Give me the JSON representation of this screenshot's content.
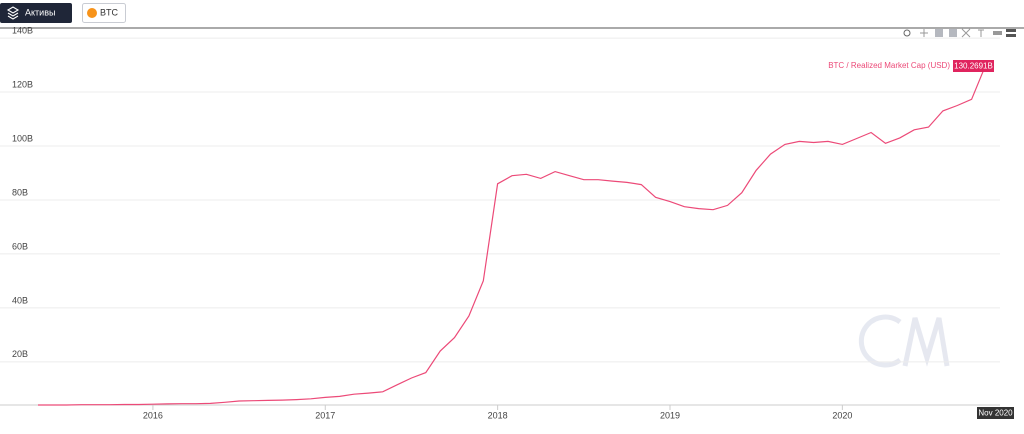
{
  "ui": {
    "assets_button": "Активы",
    "asset_chip": "BTC"
  },
  "chart_data": {
    "type": "line",
    "x": [
      "2015-05",
      "2015-06",
      "2015-07",
      "2015-08",
      "2015-09",
      "2015-10",
      "2015-11",
      "2015-12",
      "2016-01",
      "2016-02",
      "2016-03",
      "2016-04",
      "2016-05",
      "2016-06",
      "2016-07",
      "2016-08",
      "2016-09",
      "2016-10",
      "2016-11",
      "2016-12",
      "2017-01",
      "2017-02",
      "2017-03",
      "2017-04",
      "2017-05",
      "2017-06",
      "2017-07",
      "2017-08",
      "2017-09",
      "2017-10",
      "2017-11",
      "2017-12",
      "2018-01",
      "2018-02",
      "2018-03",
      "2018-04",
      "2018-05",
      "2018-06",
      "2018-07",
      "2018-08",
      "2018-09",
      "2018-10",
      "2018-11",
      "2018-12",
      "2019-01",
      "2019-02",
      "2019-03",
      "2019-04",
      "2019-05",
      "2019-06",
      "2019-07",
      "2019-08",
      "2019-09",
      "2019-10",
      "2019-11",
      "2019-12",
      "2020-01",
      "2020-02",
      "2020-03",
      "2020-04",
      "2020-05",
      "2020-06",
      "2020-07",
      "2020-08",
      "2020-09",
      "2020-10",
      "2020-11"
    ],
    "series": [
      {
        "name": "BTC / Realized Market Cap (USD)",
        "color": "#ec4a78",
        "values": [
          4.0,
          4.0,
          4.0,
          4.1,
          4.1,
          4.1,
          4.2,
          4.2,
          4.3,
          4.4,
          4.5,
          4.5,
          4.6,
          5.0,
          5.5,
          5.6,
          5.7,
          5.8,
          6.0,
          6.3,
          6.8,
          7.2,
          8.0,
          8.4,
          8.9,
          11.5,
          14,
          16,
          24,
          29,
          37,
          50,
          86,
          89,
          89.5,
          88,
          90.5,
          89,
          87.5,
          87.5,
          87,
          86.5,
          85.7,
          81,
          79.4,
          77.5,
          76.8,
          76.4,
          78,
          82.7,
          91,
          97,
          100.6,
          101.7,
          101.3,
          101.7,
          100.6,
          102.8,
          105,
          101,
          103,
          106,
          107,
          113,
          115,
          117.3,
          130.2691
        ],
        "value_labels": {
          "66": "130.2691B"
        }
      }
    ],
    "xlim": [
      "2015-05",
      "2020-11"
    ],
    "xticks": [
      {
        "value": "2016-01",
        "label": "2016"
      },
      {
        "value": "2017-01",
        "label": "2017"
      },
      {
        "value": "2018-01",
        "label": "2018"
      },
      {
        "value": "2019-01",
        "label": "2019"
      },
      {
        "value": "2020-01",
        "label": "2020"
      }
    ],
    "ylim": [
      4,
      143
    ],
    "yticks": [
      {
        "value": 20,
        "label": "20B"
      },
      {
        "value": 40,
        "label": "40B"
      },
      {
        "value": 60,
        "label": "60B"
      },
      {
        "value": 80,
        "label": "80B"
      },
      {
        "value": 100,
        "label": "100B"
      },
      {
        "value": 120,
        "label": "120B"
      },
      {
        "value": 140,
        "label": "140B"
      }
    ],
    "grid": true,
    "cursor_label": "Nov 2020"
  }
}
